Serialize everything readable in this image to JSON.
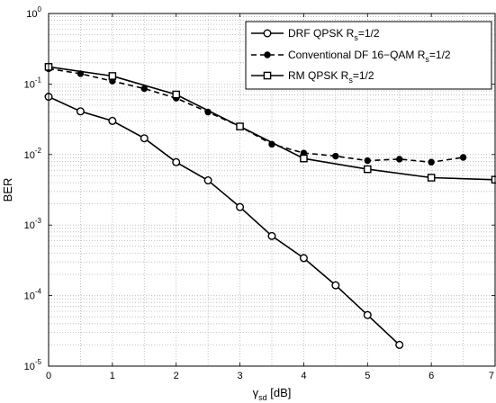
{
  "chart_data": {
    "type": "line",
    "title": "",
    "xlabel": "γsd [dB]",
    "xlabel_main": "γ",
    "xlabel_sub": "sd",
    "xlabel_unit": " [dB]",
    "ylabel": "BER",
    "xlim": [
      0,
      7
    ],
    "ylim": [
      1e-05,
      1
    ],
    "yscale": "log",
    "grid": true,
    "legend_position": "top-right",
    "x_ticks": [
      "0",
      "1",
      "2",
      "3",
      "4",
      "5",
      "6",
      "7"
    ],
    "y_ticks": [
      {
        "base": "10",
        "exp": "0"
      },
      {
        "base": "10",
        "exp": "-1"
      },
      {
        "base": "10",
        "exp": "-2"
      },
      {
        "base": "10",
        "exp": "-3"
      },
      {
        "base": "10",
        "exp": "-4"
      },
      {
        "base": "10",
        "exp": "-5"
      }
    ],
    "series": [
      {
        "name": "DRF QPSK Rs=1/2",
        "legend_main": "DRF QPSK R",
        "legend_sub": "s",
        "legend_tail": "=1/2",
        "marker": "circle",
        "line": "solid",
        "x": [
          0,
          0.5,
          1,
          1.5,
          2,
          2.5,
          3,
          3.5,
          4,
          4.5,
          5,
          5.5
        ],
        "y": [
          0.066,
          0.041,
          0.03,
          0.017,
          0.0078,
          0.0043,
          0.0018,
          0.0007,
          0.00034,
          0.00014,
          5.3e-05,
          2e-05
        ]
      },
      {
        "name": "Conventional DF 16-QAM Rs=1/2",
        "legend_main": "Conventional DF 16−QAM R",
        "legend_sub": "s",
        "legend_tail": "=1/2",
        "marker": "dot",
        "line": "dashed",
        "x": [
          0,
          0.5,
          1,
          1.5,
          2,
          2.5,
          3,
          3.5,
          4,
          4.5,
          5,
          5.5,
          6,
          6.5
        ],
        "y": [
          0.165,
          0.14,
          0.11,
          0.086,
          0.063,
          0.04,
          0.025,
          0.014,
          0.0105,
          0.0095,
          0.0082,
          0.0086,
          0.0078,
          0.0091
        ]
      },
      {
        "name": "RM QPSK Rs=1/2",
        "legend_main": "RM QPSK R",
        "legend_sub": "s",
        "legend_tail": "=1/2",
        "marker": "square",
        "line": "solid",
        "x": [
          0,
          1,
          2,
          3,
          4,
          5,
          6,
          7
        ],
        "y": [
          0.175,
          0.13,
          0.071,
          0.025,
          0.0088,
          0.0062,
          0.0047,
          0.0044
        ]
      }
    ]
  }
}
